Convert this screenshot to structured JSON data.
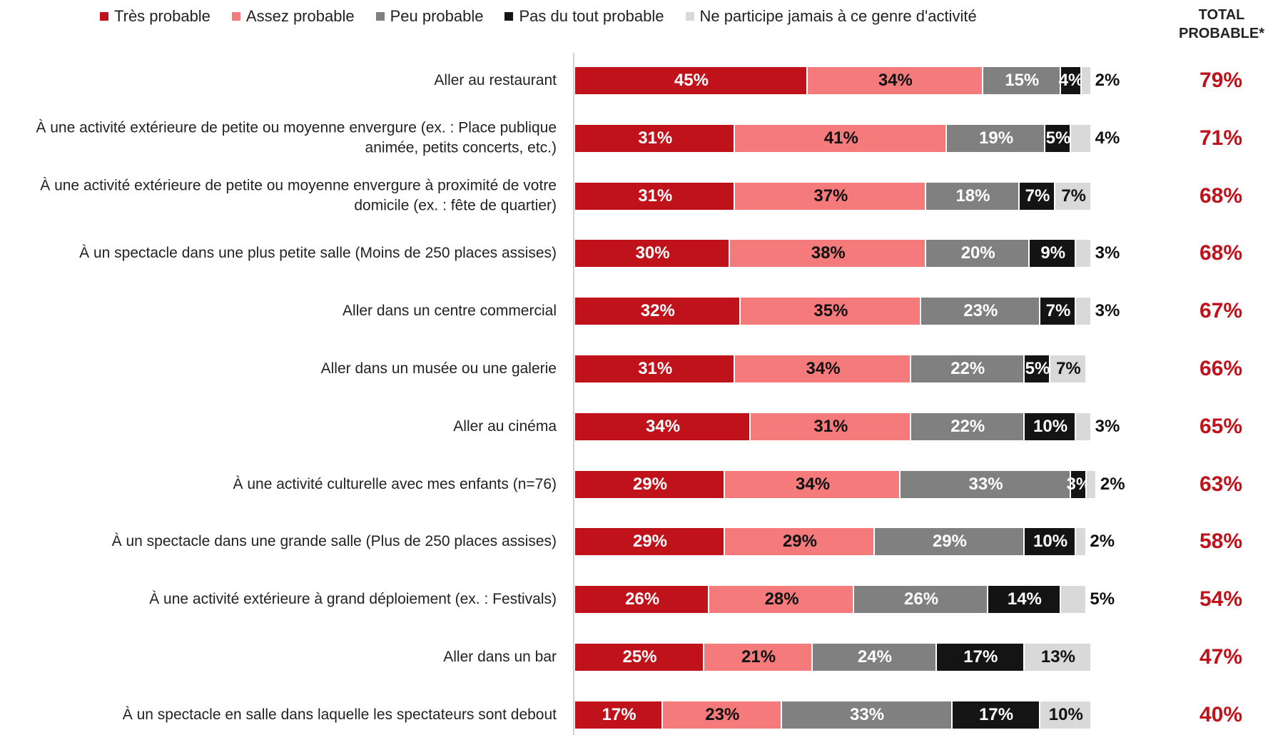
{
  "chart_data": {
    "type": "stacked-bar-horizontal",
    "categories": [
      "Aller au restaurant",
      "À une activité extérieure de petite ou moyenne envergure (ex. : Place publique animée, petits concerts, etc.)",
      "À une activité extérieure de petite ou moyenne envergure à proximité de votre domicile (ex. : fête de quartier)",
      "À un spectacle dans une plus petite salle (Moins de 250 places assises)",
      "Aller dans un centre commercial",
      "Aller dans un musée ou une galerie",
      "Aller au cinéma",
      "À une activité culturelle avec mes enfants (n=76)",
      "À un spectacle dans une grande salle (Plus de 250 places assises)",
      "À une activité extérieure à grand déploiement (ex. : Festivals)",
      "Aller dans un bar",
      "À un spectacle en salle dans laquelle les spectateurs sont debout"
    ],
    "xlim": [
      0,
      100
    ],
    "series": [
      {
        "name": "Très probable",
        "color": "#c0121b",
        "values": [
          45,
          31,
          31,
          30,
          32,
          31,
          34,
          29,
          29,
          26,
          25,
          17
        ],
        "value_labels": [
          "45%",
          "31%",
          "31%",
          "30%",
          "32%",
          "31%",
          "34%",
          "29%",
          "29%",
          "26%",
          "25%",
          "17%"
        ]
      },
      {
        "name": "Assez probable",
        "color": "#f47a7c",
        "values": [
          34,
          41,
          37,
          38,
          35,
          34,
          31,
          34,
          29,
          28,
          21,
          23
        ],
        "value_labels": [
          "34%",
          "41%",
          "37%",
          "38%",
          "35%",
          "34%",
          "31%",
          "34%",
          "29%",
          "28%",
          "21%",
          "23%"
        ]
      },
      {
        "name": "Peu probable",
        "color": "#808080",
        "values": [
          15,
          19,
          18,
          20,
          23,
          22,
          22,
          33,
          29,
          26,
          24,
          33
        ],
        "value_labels": [
          "15%",
          "19%",
          "18%",
          "20%",
          "23%",
          "22%",
          "22%",
          "33%",
          "29%",
          "26%",
          "24%",
          "33%"
        ]
      },
      {
        "name": "Pas du tout probable",
        "color": "#141414",
        "values": [
          4,
          5,
          7,
          9,
          7,
          5,
          10,
          3,
          10,
          14,
          17,
          17
        ],
        "value_labels": [
          "4%",
          "5%",
          "7%",
          "9%",
          "7%",
          "5%",
          "10%",
          "3%",
          "10%",
          "14%",
          "17%",
          "17%"
        ]
      },
      {
        "name": "Ne participe jamais à ce genre d'activité",
        "color": "#d9d9d9",
        "values": [
          2,
          4,
          7,
          3,
          3,
          7,
          3,
          2,
          2,
          5,
          13,
          10
        ],
        "value_labels": [
          "2%",
          "4%",
          "7%",
          "3%",
          "3%",
          "7%",
          "3%",
          "2%",
          "2%",
          "5%",
          "13%",
          "10%"
        ]
      }
    ],
    "totals": {
      "title": "TOTAL PROBABLE*",
      "color": "#c0121b",
      "values": [
        79,
        71,
        68,
        68,
        67,
        66,
        65,
        63,
        58,
        54,
        47,
        40
      ],
      "value_labels": [
        "79%",
        "71%",
        "68%",
        "68%",
        "67%",
        "66%",
        "65%",
        "63%",
        "58%",
        "54%",
        "47%",
        "40%"
      ]
    }
  }
}
